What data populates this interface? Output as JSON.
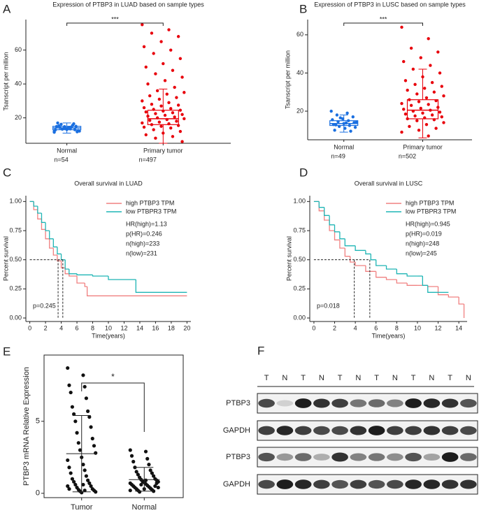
{
  "chart_data": [
    {
      "type": "box",
      "label": "A",
      "title": "Expression of PTBP3 in LUAD based on sample types",
      "ylabel": "Tsanscript per million",
      "ylim": [
        5,
        78
      ],
      "yticks": [
        20,
        40,
        60
      ],
      "categories": [
        "Normal",
        "Primary tumor"
      ],
      "count_labels": [
        "n=54",
        "n=497"
      ],
      "significance": "***",
      "groups": [
        {
          "color": "#1a6fe0",
          "whisker_low": 11,
          "q1": 13,
          "median": 14,
          "q3": 15,
          "whisker_high": 17,
          "points": [
            12.1,
            13.5,
            14.2,
            15.0,
            13.8,
            12.9,
            14.6,
            16.2,
            11.8,
            13.1,
            14.9,
            15.6,
            13.3,
            12.5,
            14.1,
            17.0,
            16.5,
            13.7,
            12.2,
            14.4,
            15.3,
            13.0,
            14.8,
            11.5
          ]
        },
        {
          "color": "#e8000b",
          "whisker_low": 5,
          "q1": 16,
          "median": 19.5,
          "q3": 24.5,
          "whisker_high": 37,
          "points": [
            75,
            72,
            70,
            68,
            65,
            62,
            60,
            58,
            55,
            52,
            50,
            48,
            46,
            44,
            42,
            40,
            38,
            36,
            35,
            34,
            33,
            32,
            31,
            30,
            29,
            28,
            27.5,
            27,
            26,
            25.5,
            25,
            24.5,
            24,
            23.5,
            23,
            22.5,
            22,
            21.5,
            21,
            20.5,
            20,
            19.5,
            19,
            18.5,
            18,
            17.5,
            17,
            16.5,
            16,
            15.5,
            15,
            14.5,
            14,
            13,
            12,
            11,
            10,
            9,
            8,
            6
          ]
        }
      ]
    },
    {
      "type": "box",
      "label": "B",
      "title": "Expression of PTBP3 in LUSC based on sample types",
      "ylabel": "Tsanscript per million",
      "ylim": [
        5,
        68
      ],
      "yticks": [
        20,
        40,
        60
      ],
      "categories": [
        "Normal",
        "Primary tumor"
      ],
      "count_labels": [
        "n=49",
        "n=502"
      ],
      "significance": "***",
      "groups": [
        {
          "color": "#1a6fe0",
          "whisker_low": 9,
          "q1": 12.5,
          "median": 13.5,
          "q3": 15,
          "whisker_high": 18,
          "points": [
            20,
            19,
            18,
            17,
            16,
            15.5,
            15,
            14.5,
            14,
            13.5,
            13,
            12.5,
            12,
            11.5,
            11,
            10,
            9.5,
            16.5,
            14.2,
            13.8,
            12.8
          ]
        },
        {
          "color": "#e8000b",
          "whisker_low": 6,
          "q1": 16,
          "median": 20.5,
          "q3": 26,
          "whisker_high": 42,
          "points": [
            64,
            58,
            53,
            51,
            48,
            46,
            44,
            42,
            40,
            38,
            36,
            35,
            34,
            33,
            32,
            31,
            30,
            29,
            28,
            27,
            26,
            25.5,
            25,
            24,
            23.5,
            23,
            22,
            21.5,
            21,
            20.5,
            20,
            19.5,
            19,
            18.5,
            18,
            17.5,
            17,
            16.5,
            16,
            15.5,
            15,
            14,
            13,
            12,
            11,
            10,
            9,
            7
          ]
        }
      ]
    },
    {
      "type": "survival",
      "label": "C",
      "title": "Overall survival in LUAD",
      "xlabel": "Time(years)",
      "ylabel": "Percent survival",
      "xlim": [
        -0.5,
        20.5
      ],
      "xticks": [
        0,
        2,
        4,
        6,
        8,
        10,
        12,
        14,
        16,
        18,
        20
      ],
      "ylim": [
        -0.03,
        1.05
      ],
      "yticks": [
        {
          "value": 0,
          "label": "0.00"
        },
        {
          "value": 0.25,
          "label": "0.25"
        },
        {
          "value": 0.5,
          "label": "0.50"
        },
        {
          "value": 0.75,
          "label": "0.75"
        },
        {
          "value": 1,
          "label": "1.00"
        }
      ],
      "series": [
        {
          "name": "high PTBP3 TPM",
          "color": "#f08080",
          "x": [
            0,
            0.5,
            1,
            1.5,
            2,
            2.5,
            3,
            3.5,
            4,
            4.5,
            5,
            6,
            7,
            7.3,
            20
          ],
          "values": [
            1,
            0.93,
            0.85,
            0.76,
            0.68,
            0.6,
            0.54,
            0.49,
            0.43,
            0.38,
            0.36,
            0.3,
            0.27,
            0.19,
            0.19
          ]
        },
        {
          "name": "low PTBPR3 TPM",
          "color": "#1fb5b5",
          "x": [
            0,
            0.5,
            1,
            1.5,
            2,
            2.5,
            3,
            3.5,
            4,
            4.5,
            5,
            6,
            8,
            10,
            13.5,
            20
          ],
          "values": [
            1,
            0.96,
            0.9,
            0.82,
            0.75,
            0.68,
            0.61,
            0.55,
            0.5,
            0.42,
            0.38,
            0.37,
            0.36,
            0.33,
            0.22,
            0.22
          ]
        }
      ],
      "median_level": 0.5,
      "medians": [
        3.6,
        4.2
      ],
      "annotations": [
        "HR(high)=1.13",
        "p(HR)=0.246",
        "n(high)=233",
        "n(low)=231"
      ],
      "p_value": "p=0.245"
    },
    {
      "type": "survival",
      "label": "D",
      "title": "Overall survival in LUSC",
      "xlabel": "Time(years)",
      "ylabel": "Percent survival",
      "xlim": [
        -0.4,
        14.8
      ],
      "xticks": [
        0,
        2,
        4,
        6,
        8,
        10,
        12,
        14
      ],
      "ylim": [
        -0.03,
        1.05
      ],
      "yticks": [
        {
          "value": 0,
          "label": "0.00"
        },
        {
          "value": 0.25,
          "label": "0.25"
        },
        {
          "value": 0.5,
          "label": "0.50"
        },
        {
          "value": 0.75,
          "label": "0.75"
        },
        {
          "value": 1,
          "label": "1.00"
        }
      ],
      "series": [
        {
          "name": "high PTBP3 TPM",
          "color": "#f08080",
          "x": [
            0,
            0.5,
            1,
            1.5,
            2,
            2.5,
            3,
            3.5,
            4,
            5,
            6,
            7,
            8,
            9,
            10,
            11,
            12,
            13,
            14,
            14.5
          ],
          "values": [
            1,
            0.92,
            0.84,
            0.75,
            0.67,
            0.6,
            0.53,
            0.48,
            0.45,
            0.4,
            0.35,
            0.33,
            0.3,
            0.28,
            0.28,
            0.27,
            0.2,
            0.18,
            0.12,
            0.0
          ]
        },
        {
          "name": "low PTBPR3 TPM",
          "color": "#1fb5b5",
          "x": [
            0,
            0.5,
            1,
            1.5,
            2,
            2.5,
            3,
            4,
            5,
            5.5,
            6,
            7,
            8,
            9,
            10,
            10.5,
            11,
            12,
            13
          ],
          "values": [
            1,
            0.95,
            0.88,
            0.8,
            0.74,
            0.68,
            0.62,
            0.58,
            0.55,
            0.5,
            0.45,
            0.42,
            0.38,
            0.36,
            0.36,
            0.28,
            0.22,
            0.22,
            0.22
          ]
        }
      ],
      "median_level": 0.5,
      "medians": [
        3.9,
        5.4
      ],
      "annotations": [
        "HR(high)=0.945",
        "p(HR)=0.019",
        "n(high)=248",
        "n(low)=245"
      ],
      "p_value": "p=0.018"
    },
    {
      "type": "dotplot",
      "label": "E",
      "ylabel": "PTBP3 mRNA Relative Expression",
      "ylim": [
        -0.3,
        9.6
      ],
      "yticks": [
        0,
        5
      ],
      "categories": [
        "Tumor",
        "Normal"
      ],
      "significance": "*",
      "groups": [
        {
          "mean": 2.75,
          "sd_high": 5.4,
          "sd_low": 0.1,
          "points": [
            8.7,
            8.2,
            7.5,
            7.4,
            7.0,
            6.6,
            6.0,
            5.7,
            5.5,
            5.3,
            5.0,
            4.6,
            4.2,
            3.8,
            3.5,
            3.3,
            3.0,
            2.8,
            2.5,
            2.3,
            2.0,
            1.8,
            1.6,
            1.4,
            1.2,
            1.0,
            0.9,
            0.8,
            0.7,
            0.6,
            0.5,
            0.4,
            0.3,
            0.25,
            0.2,
            0.15,
            0.1,
            0.05,
            0.5,
            0.6,
            0.3,
            0.2
          ]
        },
        {
          "mean": 0.95,
          "sd_high": 1.8,
          "sd_low": 0.15,
          "points": [
            3.0,
            2.9,
            2.6,
            2.4,
            2.2,
            2.0,
            1.8,
            1.6,
            1.5,
            1.4,
            1.3,
            1.2,
            1.1,
            1.0,
            0.95,
            0.9,
            0.85,
            0.8,
            0.75,
            0.7,
            0.65,
            0.6,
            0.55,
            0.5,
            0.45,
            0.4,
            0.35,
            0.3,
            0.25,
            0.2,
            0.15,
            0.1,
            0.5,
            0.6,
            0.7,
            0.8,
            0.4,
            0.3,
            0.2,
            0.9
          ]
        }
      ]
    }
  ],
  "blot": {
    "label": "F",
    "lanes": [
      "T",
      "N",
      "T",
      "N",
      "T",
      "N",
      "T",
      "N",
      "T",
      "N",
      "T",
      "N"
    ],
    "rows": [
      "PTBP3",
      "GAPDH",
      "PTBP3",
      "GAPDH"
    ]
  }
}
